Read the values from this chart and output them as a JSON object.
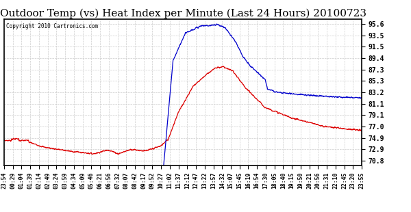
{
  "title": "Outdoor Temp (vs) Heat Index per Minute (Last 24 Hours) 20100723",
  "copyright": "Copyright 2010 Cartronics.com",
  "yticks": [
    70.8,
    72.9,
    74.9,
    77.0,
    79.1,
    81.1,
    83.2,
    85.3,
    87.3,
    89.4,
    91.5,
    93.5,
    95.6
  ],
  "ylim": [
    70.0,
    96.5
  ],
  "background_color": "#ffffff",
  "grid_color": "#cccccc",
  "red_color": "#dd0000",
  "blue_color": "#0000cc",
  "title_fontsize": 11,
  "xtick_labels": [
    "23:54",
    "00:29",
    "01:04",
    "01:39",
    "02:14",
    "02:49",
    "03:24",
    "03:59",
    "04:34",
    "05:09",
    "05:46",
    "06:21",
    "06:56",
    "07:32",
    "08:07",
    "08:42",
    "09:17",
    "09:52",
    "10:27",
    "11:02",
    "11:37",
    "12:12",
    "12:47",
    "13:22",
    "13:57",
    "14:32",
    "15:07",
    "15:45",
    "16:19",
    "16:54",
    "17:30",
    "18:05",
    "18:40",
    "19:15",
    "19:50",
    "20:21",
    "20:56",
    "21:31",
    "22:10",
    "22:45",
    "23:20",
    "23:55"
  ]
}
